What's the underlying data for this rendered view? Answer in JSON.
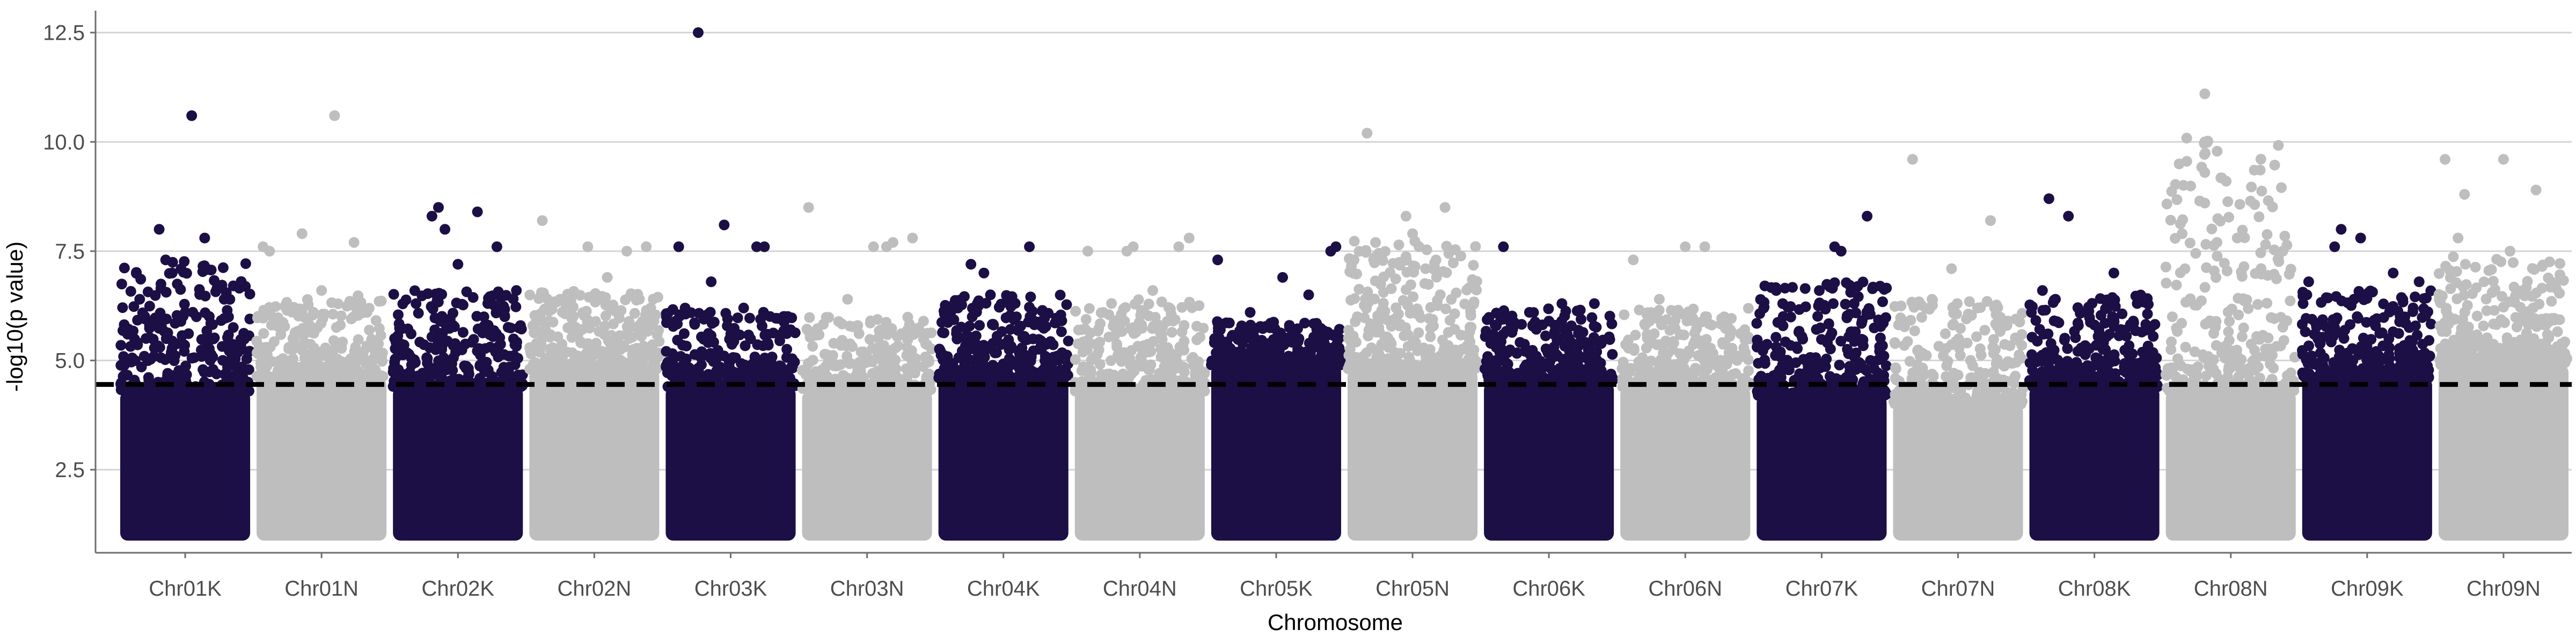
{
  "chart_data": {
    "type": "scatter",
    "subtype": "manhattan",
    "title": "",
    "xlabel": "Chromosome",
    "ylabel": "-log10(p value)",
    "ylim": [
      0.6,
      13.0
    ],
    "yticks": [
      2.5,
      5.0,
      7.5,
      10.0,
      12.5
    ],
    "ytick_labels": [
      "2.5",
      "5.0",
      "7.5",
      "10.0",
      "12.5"
    ],
    "grid": {
      "major_y": true,
      "x": false
    },
    "threshold": {
      "value": 4.45,
      "style": "dashed",
      "color": "#000000"
    },
    "colors": {
      "K": "#1c0f45",
      "N": "#bebebe",
      "grid": "#d4d4d4",
      "axis": "#6e6e6e"
    },
    "categories": [
      "Chr01K",
      "Chr01N",
      "Chr02K",
      "Chr02N",
      "Chr03K",
      "Chr03N",
      "Chr04K",
      "Chr04N",
      "Chr05K",
      "Chr05N",
      "Chr06K",
      "Chr06N",
      "Chr07K",
      "Chr07N",
      "Chr08K",
      "Chr08N",
      "Chr09K",
      "Chr09N"
    ],
    "series": [
      {
        "chromosome": "Chr01K",
        "color": "#1c0f45",
        "peak_max": 10.6,
        "upper_band": 4.3,
        "scatter_top": 7.3,
        "highlights": [
          [
            0.55,
            10.6
          ],
          [
            0.3,
            8.0
          ],
          [
            0.65,
            7.8
          ],
          [
            0.35,
            7.3
          ],
          [
            0.4,
            7.0
          ],
          [
            0.15,
            6.4
          ],
          [
            0.8,
            6.4
          ],
          [
            0.5,
            6.1
          ]
        ]
      },
      {
        "chromosome": "Chr01N",
        "color": "#bebebe",
        "peak_max": 10.6,
        "upper_band": 4.6,
        "scatter_top": 6.5,
        "highlights": [
          [
            0.6,
            10.6
          ],
          [
            0.35,
            7.9
          ],
          [
            0.75,
            7.7
          ],
          [
            0.05,
            7.6
          ],
          [
            0.1,
            7.5
          ],
          [
            0.5,
            6.6
          ],
          [
            0.85,
            6.1
          ]
        ]
      },
      {
        "chromosome": "Chr02K",
        "color": "#1c0f45",
        "peak_max": 8.5,
        "upper_band": 4.4,
        "scatter_top": 6.6,
        "highlights": [
          [
            0.35,
            8.5
          ],
          [
            0.3,
            8.3
          ],
          [
            0.65,
            8.4
          ],
          [
            0.4,
            8.0
          ],
          [
            0.8,
            7.6
          ],
          [
            0.5,
            7.2
          ],
          [
            0.95,
            6.6
          ],
          [
            0.7,
            6.0
          ]
        ]
      },
      {
        "chromosome": "Chr02N",
        "color": "#bebebe",
        "peak_max": 8.2,
        "upper_band": 4.8,
        "scatter_top": 6.6,
        "highlights": [
          [
            0.1,
            8.2
          ],
          [
            0.45,
            7.6
          ],
          [
            0.75,
            7.5
          ],
          [
            0.9,
            7.6
          ],
          [
            0.6,
            6.9
          ],
          [
            0.3,
            6.5
          ]
        ]
      },
      {
        "chromosome": "Chr03K",
        "color": "#1c0f45",
        "peak_max": 12.5,
        "upper_band": 4.4,
        "scatter_top": 6.2,
        "highlights": [
          [
            0.25,
            12.5
          ],
          [
            0.1,
            7.6
          ],
          [
            0.7,
            7.6
          ],
          [
            0.76,
            7.6
          ],
          [
            0.45,
            8.1
          ],
          [
            0.35,
            6.8
          ],
          [
            0.6,
            6.2
          ]
        ]
      },
      {
        "chromosome": "Chr03N",
        "color": "#bebebe",
        "peak_max": 8.5,
        "upper_band": 4.3,
        "scatter_top": 6.0,
        "highlights": [
          [
            0.05,
            8.5
          ],
          [
            0.55,
            7.6
          ],
          [
            0.65,
            7.6
          ],
          [
            0.7,
            7.7
          ],
          [
            0.85,
            7.8
          ],
          [
            0.35,
            6.4
          ]
        ]
      },
      {
        "chromosome": "Chr04K",
        "color": "#1c0f45",
        "peak_max": 7.6,
        "upper_band": 4.6,
        "scatter_top": 6.5,
        "highlights": [
          [
            0.25,
            7.2
          ],
          [
            0.35,
            7.0
          ],
          [
            0.7,
            7.6
          ],
          [
            0.4,
            6.5
          ],
          [
            0.6,
            6.0
          ],
          [
            0.15,
            6.2
          ]
        ]
      },
      {
        "chromosome": "Chr04N",
        "color": "#bebebe",
        "peak_max": 7.8,
        "upper_band": 4.3,
        "scatter_top": 6.4,
        "highlights": [
          [
            0.1,
            7.5
          ],
          [
            0.4,
            7.5
          ],
          [
            0.45,
            7.6
          ],
          [
            0.8,
            7.6
          ],
          [
            0.88,
            7.8
          ],
          [
            0.6,
            6.6
          ]
        ]
      },
      {
        "chromosome": "Chr05K",
        "color": "#1c0f45",
        "peak_max": 7.6,
        "upper_band": 4.9,
        "scatter_top": 5.9,
        "highlights": [
          [
            0.05,
            7.3
          ],
          [
            0.55,
            6.9
          ],
          [
            0.75,
            6.5
          ],
          [
            0.92,
            7.5
          ],
          [
            0.96,
            7.6
          ],
          [
            0.3,
            6.1
          ]
        ]
      },
      {
        "chromosome": "Chr05N",
        "color": "#bebebe",
        "peak_max": 10.2,
        "upper_band": 4.8,
        "scatter_top": 7.8,
        "highlights": [
          [
            0.15,
            10.2
          ],
          [
            0.45,
            8.3
          ],
          [
            0.75,
            8.5
          ],
          [
            0.05,
            7.3
          ],
          [
            0.5,
            7.9
          ],
          [
            0.55,
            7.6
          ],
          [
            0.6,
            7.1
          ]
        ]
      },
      {
        "chromosome": "Chr06K",
        "color": "#1c0f45",
        "peak_max": 7.6,
        "upper_band": 4.5,
        "scatter_top": 6.2,
        "highlights": [
          [
            0.15,
            7.6
          ],
          [
            0.35,
            6.1
          ],
          [
            0.6,
            6.3
          ],
          [
            0.85,
            6.3
          ],
          [
            0.5,
            5.9
          ]
        ]
      },
      {
        "chromosome": "Chr06N",
        "color": "#bebebe",
        "peak_max": 7.6,
        "upper_band": 4.4,
        "scatter_top": 6.2,
        "highlights": [
          [
            0.1,
            7.3
          ],
          [
            0.5,
            7.6
          ],
          [
            0.65,
            7.6
          ],
          [
            0.3,
            6.4
          ],
          [
            0.8,
            6.0
          ]
        ]
      },
      {
        "chromosome": "Chr07K",
        "color": "#1c0f45",
        "peak_max": 8.3,
        "upper_band": 4.2,
        "scatter_top": 6.8,
        "highlights": [
          [
            0.85,
            8.3
          ],
          [
            0.6,
            7.6
          ],
          [
            0.65,
            7.5
          ],
          [
            0.15,
            6.6
          ],
          [
            0.95,
            6.7
          ],
          [
            0.75,
            6.3
          ]
        ]
      },
      {
        "chromosome": "Chr07N",
        "color": "#bebebe",
        "peak_max": 9.6,
        "upper_band": 4.0,
        "scatter_top": 6.4,
        "highlights": [
          [
            0.15,
            9.6
          ],
          [
            0.75,
            8.2
          ],
          [
            0.45,
            7.1
          ],
          [
            0.3,
            6.4
          ],
          [
            0.65,
            6.2
          ]
        ]
      },
      {
        "chromosome": "Chr08K",
        "color": "#1c0f45",
        "peak_max": 8.7,
        "upper_band": 4.4,
        "scatter_top": 6.5,
        "highlights": [
          [
            0.15,
            8.7
          ],
          [
            0.3,
            8.3
          ],
          [
            0.65,
            7.0
          ],
          [
            0.1,
            6.6
          ],
          [
            0.2,
            6.4
          ],
          [
            0.8,
            5.9
          ]
        ]
      },
      {
        "chromosome": "Chr08N",
        "color": "#bebebe",
        "peak_max": 11.1,
        "upper_band": 4.3,
        "scatter_top": 10.1,
        "highlights": [
          [
            0.3,
            11.1
          ],
          [
            0.3,
            10.0
          ],
          [
            0.3,
            9.3
          ],
          [
            0.3,
            8.6
          ],
          [
            0.55,
            7.8
          ],
          [
            0.9,
            7.5
          ],
          [
            0.05,
            6.0
          ]
        ]
      },
      {
        "chromosome": "Chr09K",
        "color": "#1c0f45",
        "peak_max": 8.0,
        "upper_band": 4.6,
        "scatter_top": 6.6,
        "highlights": [
          [
            0.3,
            8.0
          ],
          [
            0.45,
            7.8
          ],
          [
            0.25,
            7.6
          ],
          [
            0.05,
            6.8
          ],
          [
            0.7,
            7.0
          ],
          [
            0.9,
            6.8
          ]
        ]
      },
      {
        "chromosome": "Chr09N",
        "color": "#bebebe",
        "peak_max": 9.6,
        "upper_band": 4.9,
        "scatter_top": 7.4,
        "highlights": [
          [
            0.05,
            9.6
          ],
          [
            0.5,
            9.6
          ],
          [
            0.75,
            8.9
          ],
          [
            0.2,
            8.8
          ],
          [
            0.15,
            7.8
          ],
          [
            0.55,
            7.5
          ],
          [
            0.35,
            6.8
          ]
        ]
      }
    ]
  }
}
